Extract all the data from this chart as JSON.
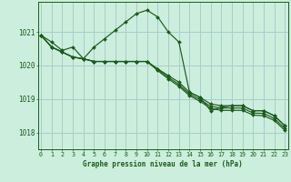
{
  "title": "Graphe pression niveau de la mer (hPa)",
  "background_color": "#cceedd",
  "grid_color": "#aacccc",
  "line_color": "#1a5c1a",
  "xlim": [
    -0.3,
    23.3
  ],
  "ylim": [
    1017.5,
    1021.9
  ],
  "yticks": [
    1018,
    1019,
    1020,
    1021
  ],
  "xtick_labels": [
    "0",
    "1",
    "2",
    "3",
    "4",
    "5",
    "6",
    "7",
    "8",
    "9",
    "10",
    "11",
    "12",
    "13",
    "14",
    "15",
    "16",
    "17",
    "18",
    "19",
    "20",
    "21",
    "22",
    "23"
  ],
  "series": [
    [
      1020.9,
      1020.7,
      1020.45,
      1020.55,
      1020.2,
      1020.55,
      1020.8,
      1021.05,
      1021.3,
      1021.55,
      1021.65,
      1021.45,
      1021.0,
      1020.7,
      1019.2,
      1019.05,
      1018.65,
      1018.75,
      1018.8,
      1018.8,
      1018.65,
      1018.65,
      1018.5,
      1018.2
    ],
    [
      1020.9,
      1020.55,
      1020.4,
      1020.25,
      1020.2,
      1020.12,
      1020.12,
      1020.12,
      1020.12,
      1020.12,
      1020.12,
      1019.9,
      1019.7,
      1019.5,
      1019.2,
      1019.05,
      1018.85,
      1018.8,
      1018.8,
      1018.8,
      1018.65,
      1018.65,
      1018.5,
      1018.2
    ],
    [
      1020.9,
      1020.55,
      1020.4,
      1020.25,
      1020.2,
      1020.12,
      1020.12,
      1020.12,
      1020.12,
      1020.12,
      1020.12,
      1019.88,
      1019.65,
      1019.43,
      1019.15,
      1018.98,
      1018.78,
      1018.73,
      1018.73,
      1018.73,
      1018.58,
      1018.57,
      1018.42,
      1018.12
    ],
    [
      1020.9,
      1020.55,
      1020.4,
      1020.25,
      1020.2,
      1020.12,
      1020.12,
      1020.12,
      1020.12,
      1020.12,
      1020.12,
      1019.85,
      1019.6,
      1019.38,
      1019.1,
      1018.93,
      1018.72,
      1018.66,
      1018.66,
      1018.66,
      1018.52,
      1018.5,
      1018.36,
      1018.06
    ]
  ]
}
